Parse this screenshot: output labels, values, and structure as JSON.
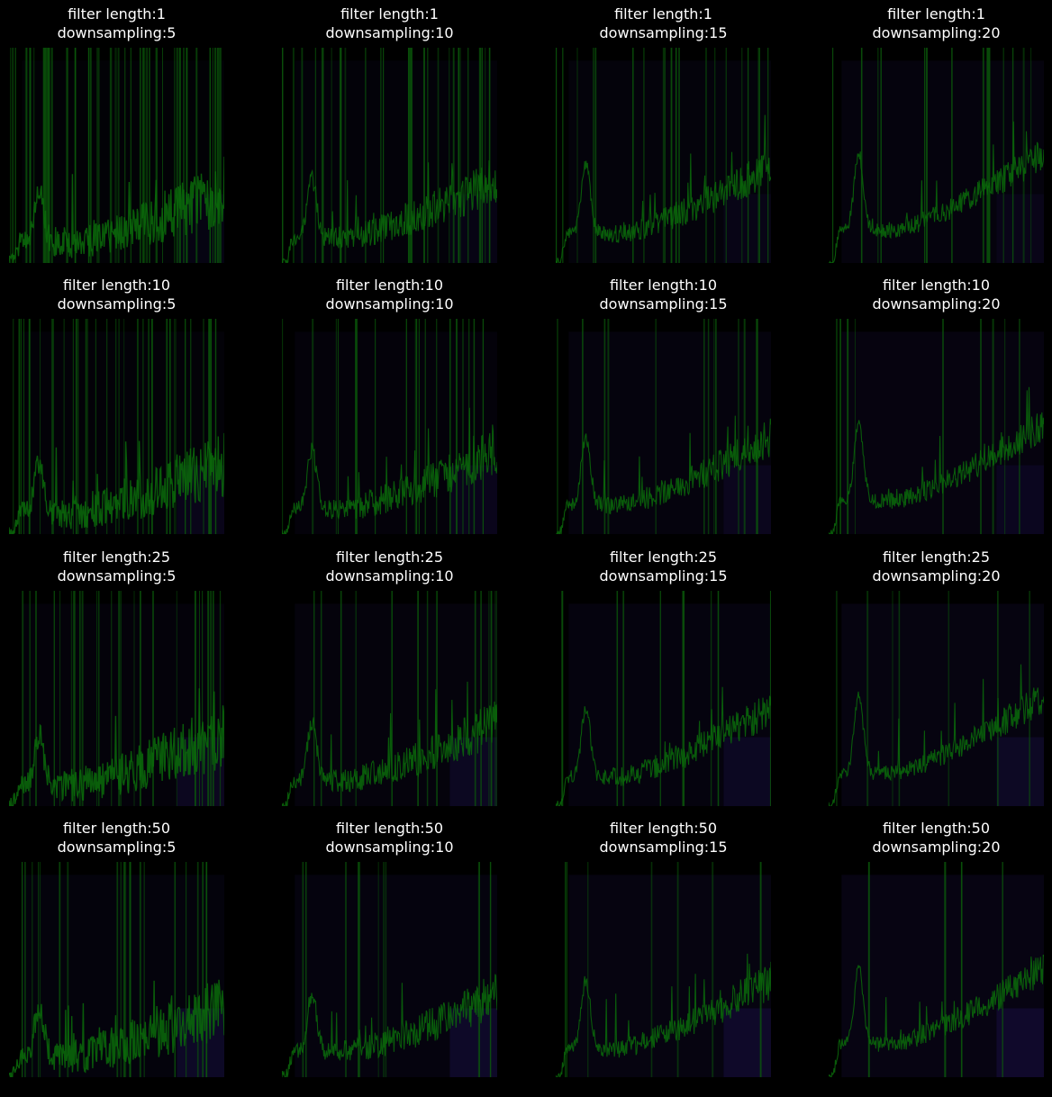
{
  "figure": {
    "background": "#000000",
    "text_color": "#ffffff",
    "colors": {
      "trace": "#0a6b0a",
      "overlay": "#2a1a6e",
      "spike": "#0b5a0b"
    }
  },
  "chart_data": {
    "type": "line",
    "grid": false,
    "axes_visible": false,
    "rows": [
      1,
      10,
      25,
      50
    ],
    "cols": [
      5,
      10,
      15,
      20
    ],
    "panels": [
      {
        "title_line1": "filter length:1",
        "title_line2": "downsampling:5"
      },
      {
        "title_line1": "filter length:1",
        "title_line2": "downsampling:10"
      },
      {
        "title_line1": "filter length:1",
        "title_line2": "downsampling:15"
      },
      {
        "title_line1": "filter length:1",
        "title_line2": "downsampling:20"
      },
      {
        "title_line1": "filter length:10",
        "title_line2": "downsampling:5"
      },
      {
        "title_line1": "filter length:10",
        "title_line2": "downsampling:10"
      },
      {
        "title_line1": "filter length:10",
        "title_line2": "downsampling:15"
      },
      {
        "title_line1": "filter length:10",
        "title_line2": "downsampling:20"
      },
      {
        "title_line1": "filter length:25",
        "title_line2": "downsampling:5"
      },
      {
        "title_line1": "filter length:25",
        "title_line2": "downsampling:10"
      },
      {
        "title_line1": "filter length:25",
        "title_line2": "downsampling:15"
      },
      {
        "title_line1": "filter length:25",
        "title_line2": "downsampling:20"
      },
      {
        "title_line1": "filter length:50",
        "title_line2": "downsampling:5"
      },
      {
        "title_line1": "filter length:50",
        "title_line2": "downsampling:10"
      },
      {
        "title_line1": "filter length:50",
        "title_line2": "downsampling:15"
      },
      {
        "title_line1": "filter length:50",
        "title_line2": "downsampling:20"
      }
    ]
  }
}
